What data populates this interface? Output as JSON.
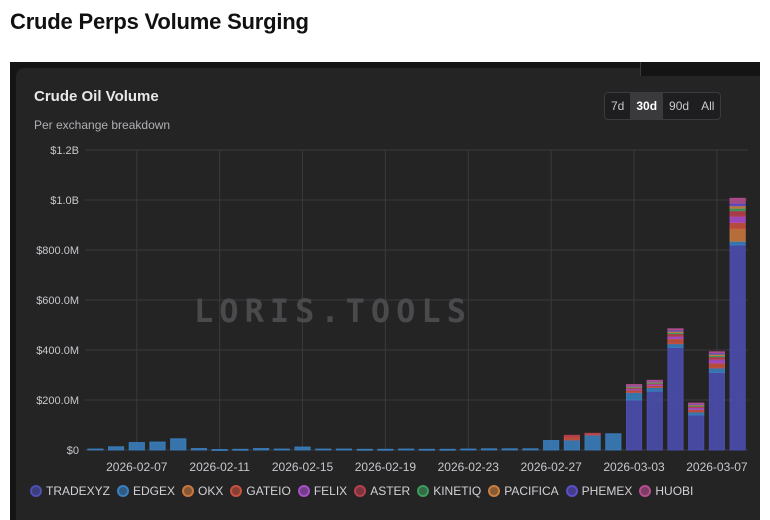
{
  "page": {
    "title": "Crude Perps Volume Surging"
  },
  "card": {
    "title": "Crude Oil Volume",
    "subtitle": "Per exchange breakdown",
    "range_tabs": [
      {
        "label": "7d",
        "active": false
      },
      {
        "label": "30d",
        "active": true
      },
      {
        "label": "90d",
        "active": false
      },
      {
        "label": "All",
        "active": false
      }
    ],
    "watermark": "LORIS.TOOLS"
  },
  "colors": {
    "background": "#242425",
    "grid": "#3a3a3d",
    "axis_text": "#c8c8cc"
  },
  "chart_data": {
    "type": "bar",
    "stacked": true,
    "title": "Crude Oil Volume",
    "subtitle": "Per exchange breakdown",
    "ylim": [
      0,
      1200000000
    ],
    "y_ticks": [
      0,
      200000000,
      400000000,
      600000000,
      800000000,
      1000000000,
      1200000000
    ],
    "y_tick_labels": [
      "$0",
      "$200.0M",
      "$400.0M",
      "$600.0M",
      "$800.0M",
      "$1.0B",
      "$1.2B"
    ],
    "x_tick_labels": [
      "2026-02-07",
      "2026-02-11",
      "2026-02-15",
      "2026-02-19",
      "2026-02-23",
      "2026-02-27",
      "2026-03-03",
      "2026-03-07"
    ],
    "grid": true,
    "legend_position": "bottom",
    "categories": [
      "2026-02-05",
      "2026-02-06",
      "2026-02-07",
      "2026-02-08",
      "2026-02-09",
      "2026-02-10",
      "2026-02-11",
      "2026-02-12",
      "2026-02-13",
      "2026-02-14",
      "2026-02-15",
      "2026-02-16",
      "2026-02-17",
      "2026-02-18",
      "2026-02-19",
      "2026-02-20",
      "2026-02-21",
      "2026-02-22",
      "2026-02-23",
      "2026-02-24",
      "2026-02-25",
      "2026-02-26",
      "2026-02-27",
      "2026-02-28",
      "2026-03-01",
      "2026-03-02",
      "2026-03-03",
      "2026-03-04",
      "2026-03-05",
      "2026-03-06",
      "2026-03-07",
      "2026-03-08"
    ],
    "series": [
      {
        "name": "TRADEXYZ",
        "color": "#4c4fb3",
        "values": [
          0,
          0,
          0,
          0,
          0,
          0,
          0,
          0,
          0,
          0,
          0,
          0,
          0,
          0,
          0,
          0,
          0,
          0,
          0,
          0,
          0,
          0,
          0,
          0,
          0,
          0,
          200000000,
          235000000,
          410000000,
          140000000,
          310000000,
          820000000
        ]
      },
      {
        "name": "EDGEX",
        "color": "#3a7fbf",
        "values": [
          4000000,
          13000000,
          30000000,
          32000000,
          45000000,
          6000000,
          2000000,
          3000000,
          6000000,
          4000000,
          12000000,
          4000000,
          4000000,
          3000000,
          3000000,
          4000000,
          3000000,
          3000000,
          4000000,
          5000000,
          5000000,
          5000000,
          38000000,
          40000000,
          60000000,
          65000000,
          30000000,
          15000000,
          15000000,
          12000000,
          18000000,
          15000000
        ]
      },
      {
        "name": "OKX",
        "color": "#c9783f",
        "values": [
          0,
          0,
          0,
          0,
          0,
          0,
          0,
          0,
          0,
          0,
          0,
          0,
          0,
          0,
          0,
          0,
          0,
          0,
          0,
          0,
          0,
          0,
          0,
          0,
          0,
          0,
          0,
          0,
          0,
          0,
          0,
          50000000
        ]
      },
      {
        "name": "GATEIO",
        "color": "#c9513f",
        "values": [
          0,
          0,
          0,
          0,
          0,
          0,
          0,
          0,
          0,
          0,
          0,
          0,
          0,
          0,
          0,
          0,
          0,
          0,
          0,
          0,
          0,
          0,
          0,
          13000000,
          5000000,
          0,
          10000000,
          8000000,
          20000000,
          10000000,
          20000000,
          25000000
        ]
      },
      {
        "name": "FELIX",
        "color": "#a84fc9",
        "values": [
          0,
          0,
          0,
          0,
          0,
          0,
          0,
          0,
          0,
          0,
          0,
          0,
          0,
          0,
          0,
          0,
          0,
          0,
          0,
          0,
          0,
          0,
          0,
          0,
          0,
          0,
          5000000,
          5000000,
          10000000,
          8000000,
          15000000,
          25000000
        ]
      },
      {
        "name": "ASTER",
        "color": "#b8404c",
        "values": [
          0,
          0,
          0,
          0,
          0,
          0,
          0,
          0,
          0,
          0,
          0,
          0,
          0,
          0,
          0,
          0,
          0,
          0,
          0,
          0,
          0,
          0,
          0,
          6000000,
          2000000,
          0,
          5000000,
          4000000,
          10000000,
          6000000,
          10000000,
          22000000
        ]
      },
      {
        "name": "KINETIQ",
        "color": "#3f9a5e",
        "values": [
          0,
          0,
          0,
          0,
          0,
          0,
          0,
          0,
          0,
          0,
          0,
          0,
          0,
          0,
          0,
          0,
          0,
          0,
          0,
          0,
          0,
          0,
          0,
          0,
          0,
          0,
          3000000,
          3000000,
          5000000,
          3000000,
          5000000,
          10000000
        ]
      },
      {
        "name": "PACIFICA",
        "color": "#c97f3f",
        "values": [
          0,
          0,
          0,
          0,
          0,
          0,
          0,
          0,
          0,
          0,
          0,
          0,
          0,
          0,
          0,
          0,
          0,
          0,
          0,
          0,
          0,
          0,
          0,
          0,
          0,
          0,
          3000000,
          3000000,
          5000000,
          3000000,
          5000000,
          10000000
        ]
      },
      {
        "name": "PHEMEX",
        "color": "#5a4fc9",
        "values": [
          0,
          0,
          0,
          0,
          0,
          0,
          0,
          0,
          0,
          0,
          0,
          0,
          0,
          0,
          0,
          0,
          0,
          0,
          0,
          0,
          0,
          0,
          0,
          0,
          0,
          0,
          3000000,
          3000000,
          5000000,
          3000000,
          5000000,
          10000000
        ]
      },
      {
        "name": "HUOBI",
        "color": "#b54f8f",
        "values": [
          0,
          0,
          0,
          0,
          0,
          0,
          0,
          0,
          0,
          0,
          0,
          0,
          0,
          0,
          0,
          0,
          0,
          0,
          0,
          0,
          0,
          0,
          0,
          0,
          0,
          0,
          3000000,
          3000000,
          5000000,
          3000000,
          5000000,
          20000000
        ]
      }
    ]
  }
}
